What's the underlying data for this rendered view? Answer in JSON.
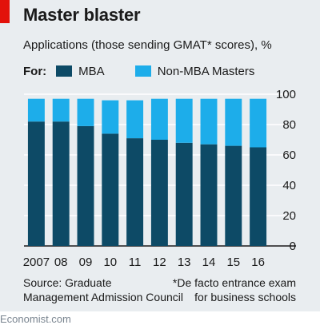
{
  "header": {
    "title": "Master blaster",
    "subtitle": "Applications (those sending GMAT* scores), %"
  },
  "legend": {
    "label": "For:",
    "items": [
      {
        "name": "MBA",
        "color": "#0d4a66"
      },
      {
        "name": "Non-MBA Masters",
        "color": "#1dadea"
      }
    ]
  },
  "chart_data": {
    "type": "bar",
    "stacked": true,
    "categories": [
      "2007",
      "08",
      "09",
      "10",
      "11",
      "12",
      "13",
      "14",
      "15",
      "16"
    ],
    "series": [
      {
        "name": "MBA",
        "color": "#0d4a66",
        "values": [
          82,
          82,
          79,
          74,
          71,
          70,
          68,
          67,
          66,
          65
        ]
      },
      {
        "name": "Non-MBA Masters",
        "color": "#1dadea",
        "values": [
          15,
          15,
          18,
          22,
          25,
          27,
          29,
          30,
          31,
          32
        ]
      }
    ],
    "y_ticks": [
      "0",
      "20",
      "40",
      "60",
      "80",
      "100"
    ],
    "ylim": [
      0,
      100
    ],
    "y_axis_side": "right",
    "grid": true,
    "legend_position": "top"
  },
  "notes": {
    "source": [
      "Source: Graduate",
      "Management Admission Council"
    ],
    "footnote": [
      "*De facto entrance exam",
      "for business schools"
    ]
  },
  "footer": "Economist.com"
}
